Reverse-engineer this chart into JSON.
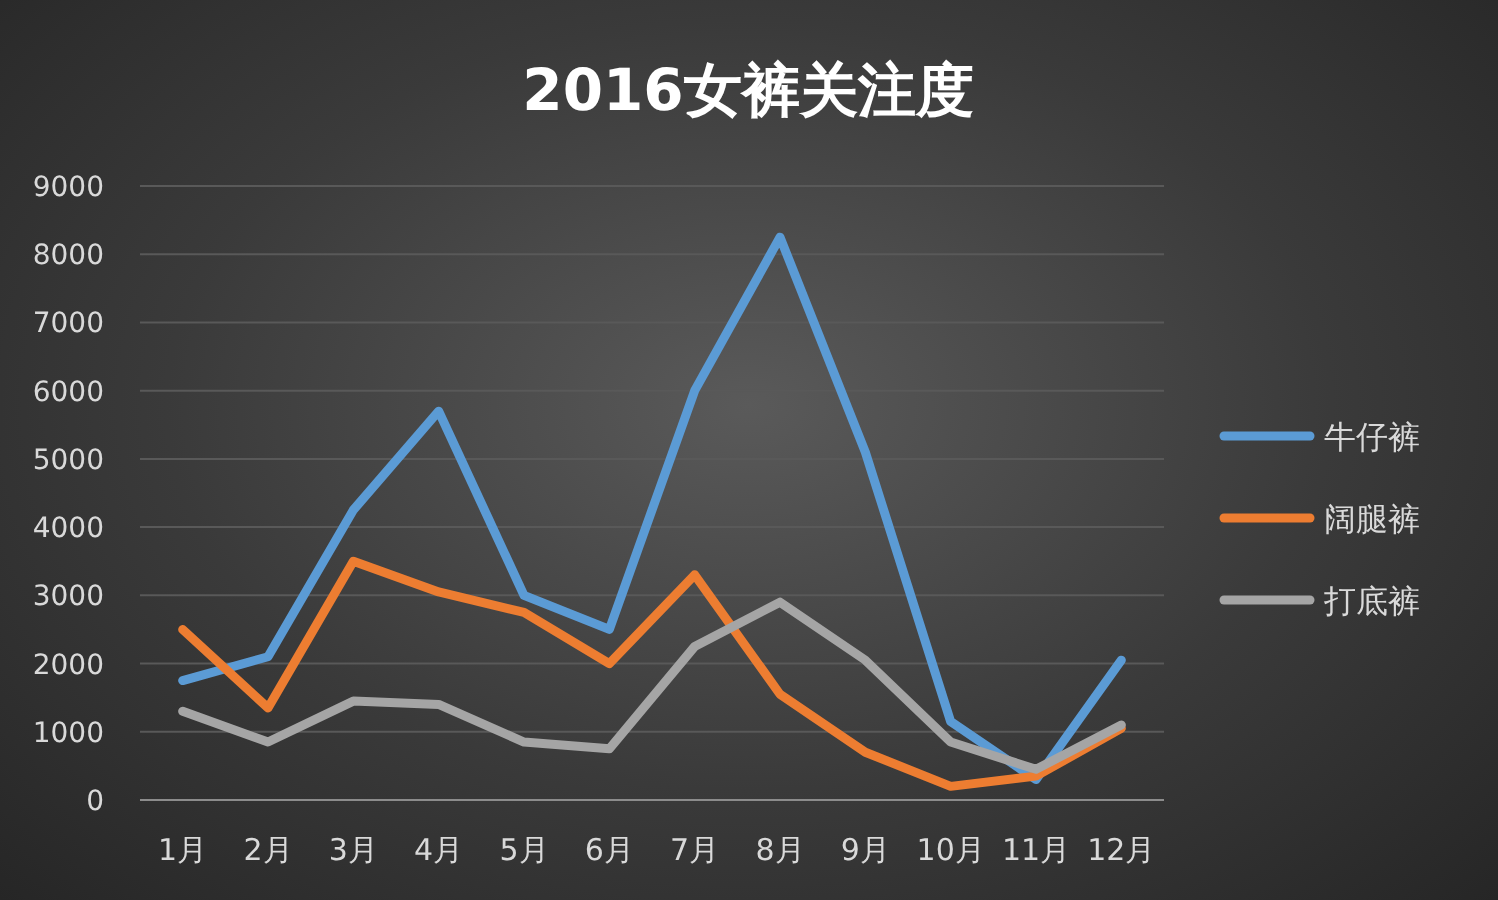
{
  "chart_data": {
    "type": "line",
    "title": "2016女裤关注度",
    "categories": [
      "1月",
      "2月",
      "3月",
      "4月",
      "5月",
      "6月",
      "7月",
      "8月",
      "9月",
      "10月",
      "11月",
      "12月"
    ],
    "series": [
      {
        "name": "牛仔裤",
        "color": "#5b9bd5",
        "values": [
          1750,
          2100,
          4250,
          5700,
          3000,
          2500,
          6000,
          8250,
          5100,
          1150,
          300,
          2050
        ]
      },
      {
        "name": "阔腿裤",
        "color": "#ed7d31",
        "values": [
          2500,
          1350,
          3500,
          3050,
          2750,
          2000,
          3300,
          1550,
          700,
          200,
          350,
          1050
        ]
      },
      {
        "name": "打底裤",
        "color": "#a5a5a5",
        "values": [
          1300,
          850,
          1450,
          1400,
          850,
          750,
          2250,
          2900,
          2050,
          850,
          450,
          1100
        ]
      }
    ],
    "ylim": [
      0,
      9000
    ],
    "yticks": [
      0,
      1000,
      2000,
      3000,
      4000,
      5000,
      6000,
      7000,
      8000,
      9000
    ],
    "grid": "y",
    "legend": "right",
    "line_style": "solid"
  }
}
